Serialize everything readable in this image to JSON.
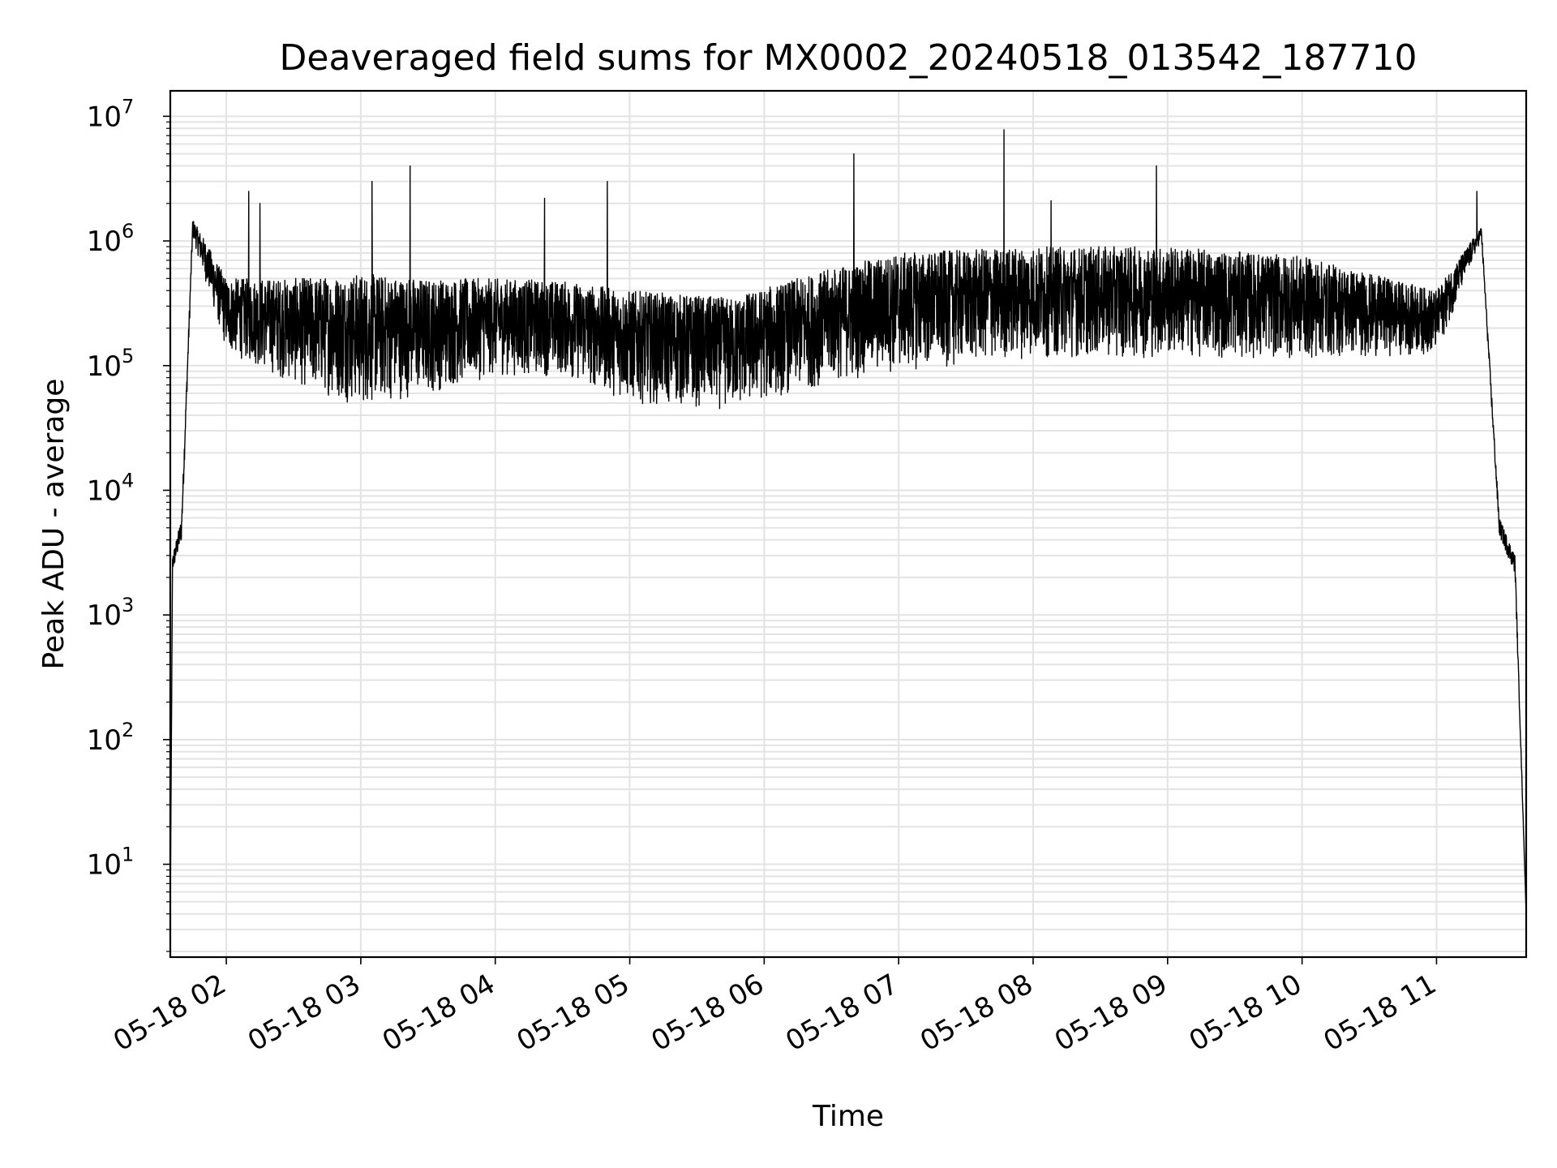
{
  "chart_data": {
    "type": "line",
    "title": "Deaveraged field sums for MX0002_20240518_013542_187710",
    "xlabel": "Time",
    "ylabel": "Peak ADU - average",
    "yscale": "log",
    "ylim": [
      1.8,
      16000000
    ],
    "xlim": [
      "2024-05-18 01:35",
      "2024-05-18 11:40"
    ],
    "y_ticks": [
      {
        "value": 10,
        "base": "10",
        "exp": "1"
      },
      {
        "value": 100,
        "base": "10",
        "exp": "2"
      },
      {
        "value": 1000,
        "base": "10",
        "exp": "3"
      },
      {
        "value": 10000,
        "base": "10",
        "exp": "4"
      },
      {
        "value": 100000,
        "base": "10",
        "exp": "5"
      },
      {
        "value": 1000000,
        "base": "10",
        "exp": "6"
      },
      {
        "value": 10000000,
        "base": "10",
        "exp": "7"
      }
    ],
    "x_ticks": [
      {
        "value": "2024-05-18 02:00",
        "label": "05-18 02"
      },
      {
        "value": "2024-05-18 03:00",
        "label": "05-18 03"
      },
      {
        "value": "2024-05-18 04:00",
        "label": "05-18 04"
      },
      {
        "value": "2024-05-18 05:00",
        "label": "05-18 05"
      },
      {
        "value": "2024-05-18 06:00",
        "label": "05-18 06"
      },
      {
        "value": "2024-05-18 07:00",
        "label": "05-18 07"
      },
      {
        "value": "2024-05-18 08:00",
        "label": "05-18 08"
      },
      {
        "value": "2024-05-18 09:00",
        "label": "05-18 09"
      },
      {
        "value": "2024-05-18 10:00",
        "label": "05-18 10"
      },
      {
        "value": "2024-05-18 11:00",
        "label": "05-18 11"
      }
    ],
    "grid": true,
    "line_color": "#000000",
    "series": [
      {
        "envelope": [
          {
            "x": "2024-05-18 01:35",
            "low": 4,
            "high": 4
          },
          {
            "x": "2024-05-18 01:36",
            "low": 2000,
            "high": 3000
          },
          {
            "x": "2024-05-18 01:40",
            "low": 3500,
            "high": 6000
          },
          {
            "x": "2024-05-18 01:45",
            "low": 1000000,
            "high": 1500000
          },
          {
            "x": "2024-05-18 02:00",
            "low": 100000,
            "high": 500000
          },
          {
            "x": "2024-05-18 02:30",
            "low": 50000,
            "high": 500000
          },
          {
            "x": "2024-05-18 03:00",
            "low": 30000,
            "high": 550000
          },
          {
            "x": "2024-05-18 03:30",
            "low": 40000,
            "high": 500000
          },
          {
            "x": "2024-05-18 04:00",
            "low": 60000,
            "high": 500000
          },
          {
            "x": "2024-05-18 04:30",
            "low": 60000,
            "high": 480000
          },
          {
            "x": "2024-05-18 05:00",
            "low": 35000,
            "high": 400000
          },
          {
            "x": "2024-05-18 05:45",
            "low": 30000,
            "high": 350000
          },
          {
            "x": "2024-05-18 06:30",
            "low": 50000,
            "high": 600000
          },
          {
            "x": "2024-05-18 07:00",
            "low": 60000,
            "high": 800000
          },
          {
            "x": "2024-05-18 08:00",
            "low": 80000,
            "high": 900000
          },
          {
            "x": "2024-05-18 09:00",
            "low": 80000,
            "high": 900000
          },
          {
            "x": "2024-05-18 10:00",
            "low": 80000,
            "high": 750000
          },
          {
            "x": "2024-05-18 11:00",
            "low": 100000,
            "high": 400000
          },
          {
            "x": "2024-05-18 11:20",
            "low": 1000000,
            "high": 1300000
          },
          {
            "x": "2024-05-18 11:28",
            "low": 4000,
            "high": 6000
          },
          {
            "x": "2024-05-18 11:35",
            "low": 2000,
            "high": 3000
          },
          {
            "x": "2024-05-18 11:40",
            "low": 4,
            "high": 4
          }
        ],
        "spikes": [
          {
            "x": "2024-05-18 02:10",
            "y": 2500000
          },
          {
            "x": "2024-05-18 02:15",
            "y": 2000000
          },
          {
            "x": "2024-05-18 03:05",
            "y": 3000000
          },
          {
            "x": "2024-05-18 03:22",
            "y": 4000000
          },
          {
            "x": "2024-05-18 04:22",
            "y": 2200000
          },
          {
            "x": "2024-05-18 04:50",
            "y": 3000000
          },
          {
            "x": "2024-05-18 06:40",
            "y": 5000000
          },
          {
            "x": "2024-05-18 07:47",
            "y": 7800000
          },
          {
            "x": "2024-05-18 08:08",
            "y": 2100000
          },
          {
            "x": "2024-05-18 08:55",
            "y": 4000000
          },
          {
            "x": "2024-05-18 11:18",
            "y": 2500000
          }
        ]
      }
    ]
  }
}
